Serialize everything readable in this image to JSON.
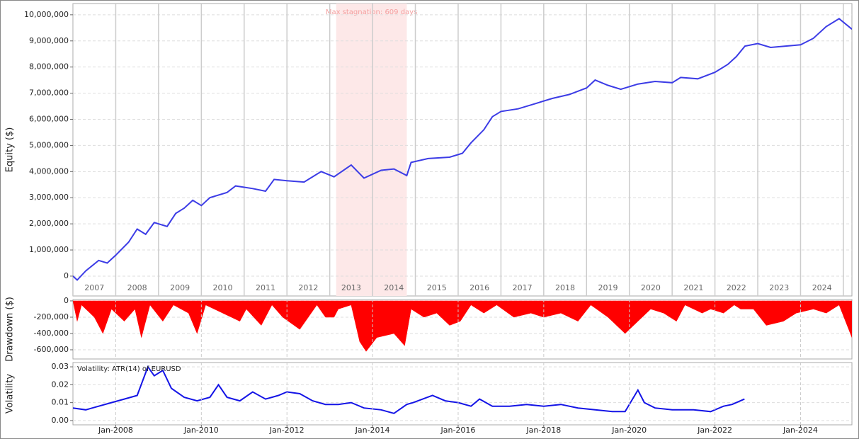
{
  "chart_data": [
    {
      "type": "line",
      "ylabel": "Equity ($)",
      "color": "#3c3ce6",
      "xlim": [
        2007.0,
        2025.2
      ],
      "ylim": [
        -760000,
        10430000
      ],
      "yticks": [
        0,
        {
          "value": 1000000,
          "label": "1,000,000"
        },
        {
          "value": 2000000,
          "label": "2,000,000"
        },
        {
          "value": 3000000,
          "label": "3,000,000"
        },
        {
          "value": 4000000,
          "label": "4,000,000"
        },
        {
          "value": 5000000,
          "label": "5,000,000"
        },
        {
          "value": 6000000,
          "label": "6,000,000"
        },
        {
          "value": 7000000,
          "label": "7,000,000"
        },
        {
          "value": 8000000,
          "label": "8,000,000"
        },
        {
          "value": 9000000,
          "label": "9,000,000"
        },
        {
          "value": 10000000,
          "label": "10,000,000"
        }
      ],
      "xticks": [
        {
          "value": 2007,
          "label": "2007"
        },
        {
          "value": 2008,
          "label": "2008"
        },
        {
          "value": 2009,
          "label": "2009"
        },
        {
          "value": 2010,
          "label": "2010"
        },
        {
          "value": 2011,
          "label": "2011"
        },
        {
          "value": 2012,
          "label": "2012"
        },
        {
          "value": 2013,
          "label": "2013"
        },
        {
          "value": 2014,
          "label": "2014"
        },
        {
          "value": 2015,
          "label": "2015"
        },
        {
          "value": 2016,
          "label": "2016"
        },
        {
          "value": 2017,
          "label": "2017"
        },
        {
          "value": 2018,
          "label": "2018"
        },
        {
          "value": 2019,
          "label": "2019"
        },
        {
          "value": 2020,
          "label": "2020"
        },
        {
          "value": 2021,
          "label": "2021"
        },
        {
          "value": 2022,
          "label": "2022"
        },
        {
          "value": 2023,
          "label": "2023"
        },
        {
          "value": 2024,
          "label": "2024"
        },
        {
          "value": 2025,
          "label": "2025"
        }
      ],
      "stagnation": {
        "label": "Max stagnation: 609 days",
        "x": [
          2013.15,
          2014.8
        ],
        "color": "#fde8e8"
      },
      "x": [
        2007.0,
        2007.1,
        2007.3,
        2007.6,
        2007.8,
        2008.0,
        2008.3,
        2008.5,
        2008.7,
        2008.9,
        2009.2,
        2009.4,
        2009.6,
        2009.8,
        2010.0,
        2010.2,
        2010.6,
        2010.8,
        2011.2,
        2011.5,
        2011.7,
        2012.0,
        2012.4,
        2012.8,
        2013.1,
        2013.5,
        2013.8,
        2014.2,
        2014.5,
        2014.8,
        2014.9,
        2015.3,
        2015.8,
        2016.1,
        2016.3,
        2016.6,
        2016.8,
        2017.0,
        2017.4,
        2017.8,
        2018.2,
        2018.6,
        2019.0,
        2019.2,
        2019.5,
        2019.8,
        2020.2,
        2020.6,
        2021.0,
        2021.2,
        2021.6,
        2022.0,
        2022.3,
        2022.5,
        2022.7,
        2023.0,
        2023.3,
        2024.0,
        2024.3,
        2024.6,
        2024.9,
        2025.2
      ],
      "values": [
        0,
        -150000,
        200000,
        600000,
        500000,
        800000,
        1300000,
        1800000,
        1600000,
        2050000,
        1900000,
        2400000,
        2600000,
        2900000,
        2700000,
        3000000,
        3200000,
        3450000,
        3350000,
        3250000,
        3700000,
        3650000,
        3600000,
        4000000,
        3800000,
        4250000,
        3750000,
        4050000,
        4100000,
        3850000,
        4350000,
        4500000,
        4550000,
        4700000,
        5100000,
        5600000,
        6100000,
        6300000,
        6400000,
        6600000,
        6800000,
        6950000,
        7200000,
        7500000,
        7300000,
        7150000,
        7350000,
        7450000,
        7400000,
        7600000,
        7550000,
        7800000,
        8100000,
        8400000,
        8800000,
        8900000,
        8750000,
        8850000,
        9100000,
        9550000,
        9850000,
        9450000
      ]
    },
    {
      "type": "area",
      "ylabel": "Drawdown ($)",
      "color": "#ff0000",
      "xlim": [
        2007.0,
        2025.2
      ],
      "ylim": [
        -713000,
        17000
      ],
      "yticks": [
        0,
        {
          "value": -200000,
          "label": "-200,000"
        },
        {
          "value": -400000,
          "label": "-400,000"
        },
        {
          "value": -600000,
          "label": "-600,000"
        }
      ],
      "x": [
        2007.0,
        2007.1,
        2007.2,
        2007.5,
        2007.7,
        2007.9,
        2008.2,
        2008.45,
        2008.6,
        2008.8,
        2009.1,
        2009.35,
        2009.7,
        2009.9,
        2010.1,
        2010.5,
        2010.9,
        2011.05,
        2011.4,
        2011.65,
        2011.9,
        2012.3,
        2012.7,
        2012.9,
        2013.1,
        2013.2,
        2013.5,
        2013.7,
        2013.85,
        2014.1,
        2014.5,
        2014.75,
        2014.9,
        2015.2,
        2015.5,
        2015.8,
        2016.05,
        2016.3,
        2016.6,
        2016.9,
        2017.3,
        2017.7,
        2018.0,
        2018.4,
        2018.8,
        2019.1,
        2019.5,
        2019.9,
        2020.1,
        2020.5,
        2020.8,
        2021.1,
        2021.3,
        2021.7,
        2021.9,
        2022.2,
        2022.45,
        2022.6,
        2022.9,
        2023.2,
        2023.6,
        2023.9,
        2024.3,
        2024.6,
        2024.9,
        2025.2
      ],
      "values": [
        0,
        -250000,
        -50000,
        -200000,
        -400000,
        -100000,
        -250000,
        -100000,
        -450000,
        -50000,
        -250000,
        -50000,
        -150000,
        -400000,
        -50000,
        -150000,
        -250000,
        -100000,
        -300000,
        -50000,
        -200000,
        -350000,
        -50000,
        -200000,
        -200000,
        -100000,
        -50000,
        -500000,
        -620000,
        -450000,
        -400000,
        -550000,
        -100000,
        -200000,
        -150000,
        -300000,
        -250000,
        -50000,
        -150000,
        -50000,
        -200000,
        -150000,
        -200000,
        -150000,
        -250000,
        -50000,
        -200000,
        -400000,
        -300000,
        -100000,
        -150000,
        -250000,
        -50000,
        -150000,
        -100000,
        -150000,
        -50000,
        -100000,
        -100000,
        -300000,
        -250000,
        -150000,
        -100000,
        -150000,
        -50000,
        -450000
      ]
    },
    {
      "type": "line",
      "ylabel": "Volatility",
      "legend": "Volatility: ATR(14) of EURUSD",
      "color": "#1414e6",
      "xlim": [
        2007.0,
        2025.2
      ],
      "ylim": [
        -0.0024,
        0.0324
      ],
      "yticks": [
        {
          "value": 0,
          "label": "0.00"
        },
        {
          "value": 0.01,
          "label": "0.01"
        },
        {
          "value": 0.02,
          "label": "0.02"
        },
        {
          "value": 0.03,
          "label": "0.03"
        }
      ],
      "xticks": [
        {
          "value": 2008,
          "label": "Jan-2008"
        },
        {
          "value": 2010,
          "label": "Jan-2010"
        },
        {
          "value": 2012,
          "label": "Jan-2012"
        },
        {
          "value": 2014,
          "label": "Jan-2014"
        },
        {
          "value": 2016,
          "label": "Jan-2016"
        },
        {
          "value": 2018,
          "label": "Jan-2018"
        },
        {
          "value": 2020,
          "label": "Jan-2020"
        },
        {
          "value": 2022,
          "label": "Jan-2022"
        },
        {
          "value": 2024,
          "label": "Jan-2024"
        }
      ],
      "x": [
        2007.0,
        2007.3,
        2007.6,
        2007.9,
        2008.2,
        2008.5,
        2008.75,
        2008.9,
        2009.1,
        2009.3,
        2009.6,
        2009.9,
        2010.2,
        2010.4,
        2010.6,
        2010.9,
        2011.2,
        2011.5,
        2011.8,
        2012.0,
        2012.3,
        2012.6,
        2012.9,
        2013.2,
        2013.5,
        2013.8,
        2014.2,
        2014.5,
        2014.8,
        2014.95,
        2015.4,
        2015.7,
        2016.0,
        2016.3,
        2016.5,
        2016.8,
        2017.2,
        2017.6,
        2018.0,
        2018.4,
        2018.8,
        2019.2,
        2019.6,
        2019.9,
        2020.2,
        2020.35,
        2020.6,
        2021.0,
        2021.5,
        2021.9,
        2022.2,
        2022.4,
        2022.69
      ],
      "values": [
        0.007,
        0.006,
        0.008,
        0.01,
        0.012,
        0.014,
        0.03,
        0.025,
        0.028,
        0.018,
        0.013,
        0.011,
        0.013,
        0.02,
        0.013,
        0.011,
        0.016,
        0.012,
        0.014,
        0.016,
        0.015,
        0.011,
        0.009,
        0.009,
        0.01,
        0.007,
        0.006,
        0.004,
        0.009,
        0.01,
        0.014,
        0.011,
        0.01,
        0.008,
        0.012,
        0.008,
        0.008,
        0.009,
        0.008,
        0.009,
        0.007,
        0.006,
        0.005,
        0.005,
        0.017,
        0.01,
        0.007,
        0.006,
        0.006,
        0.005,
        0.008,
        0.009,
        0.012
      ]
    }
  ]
}
